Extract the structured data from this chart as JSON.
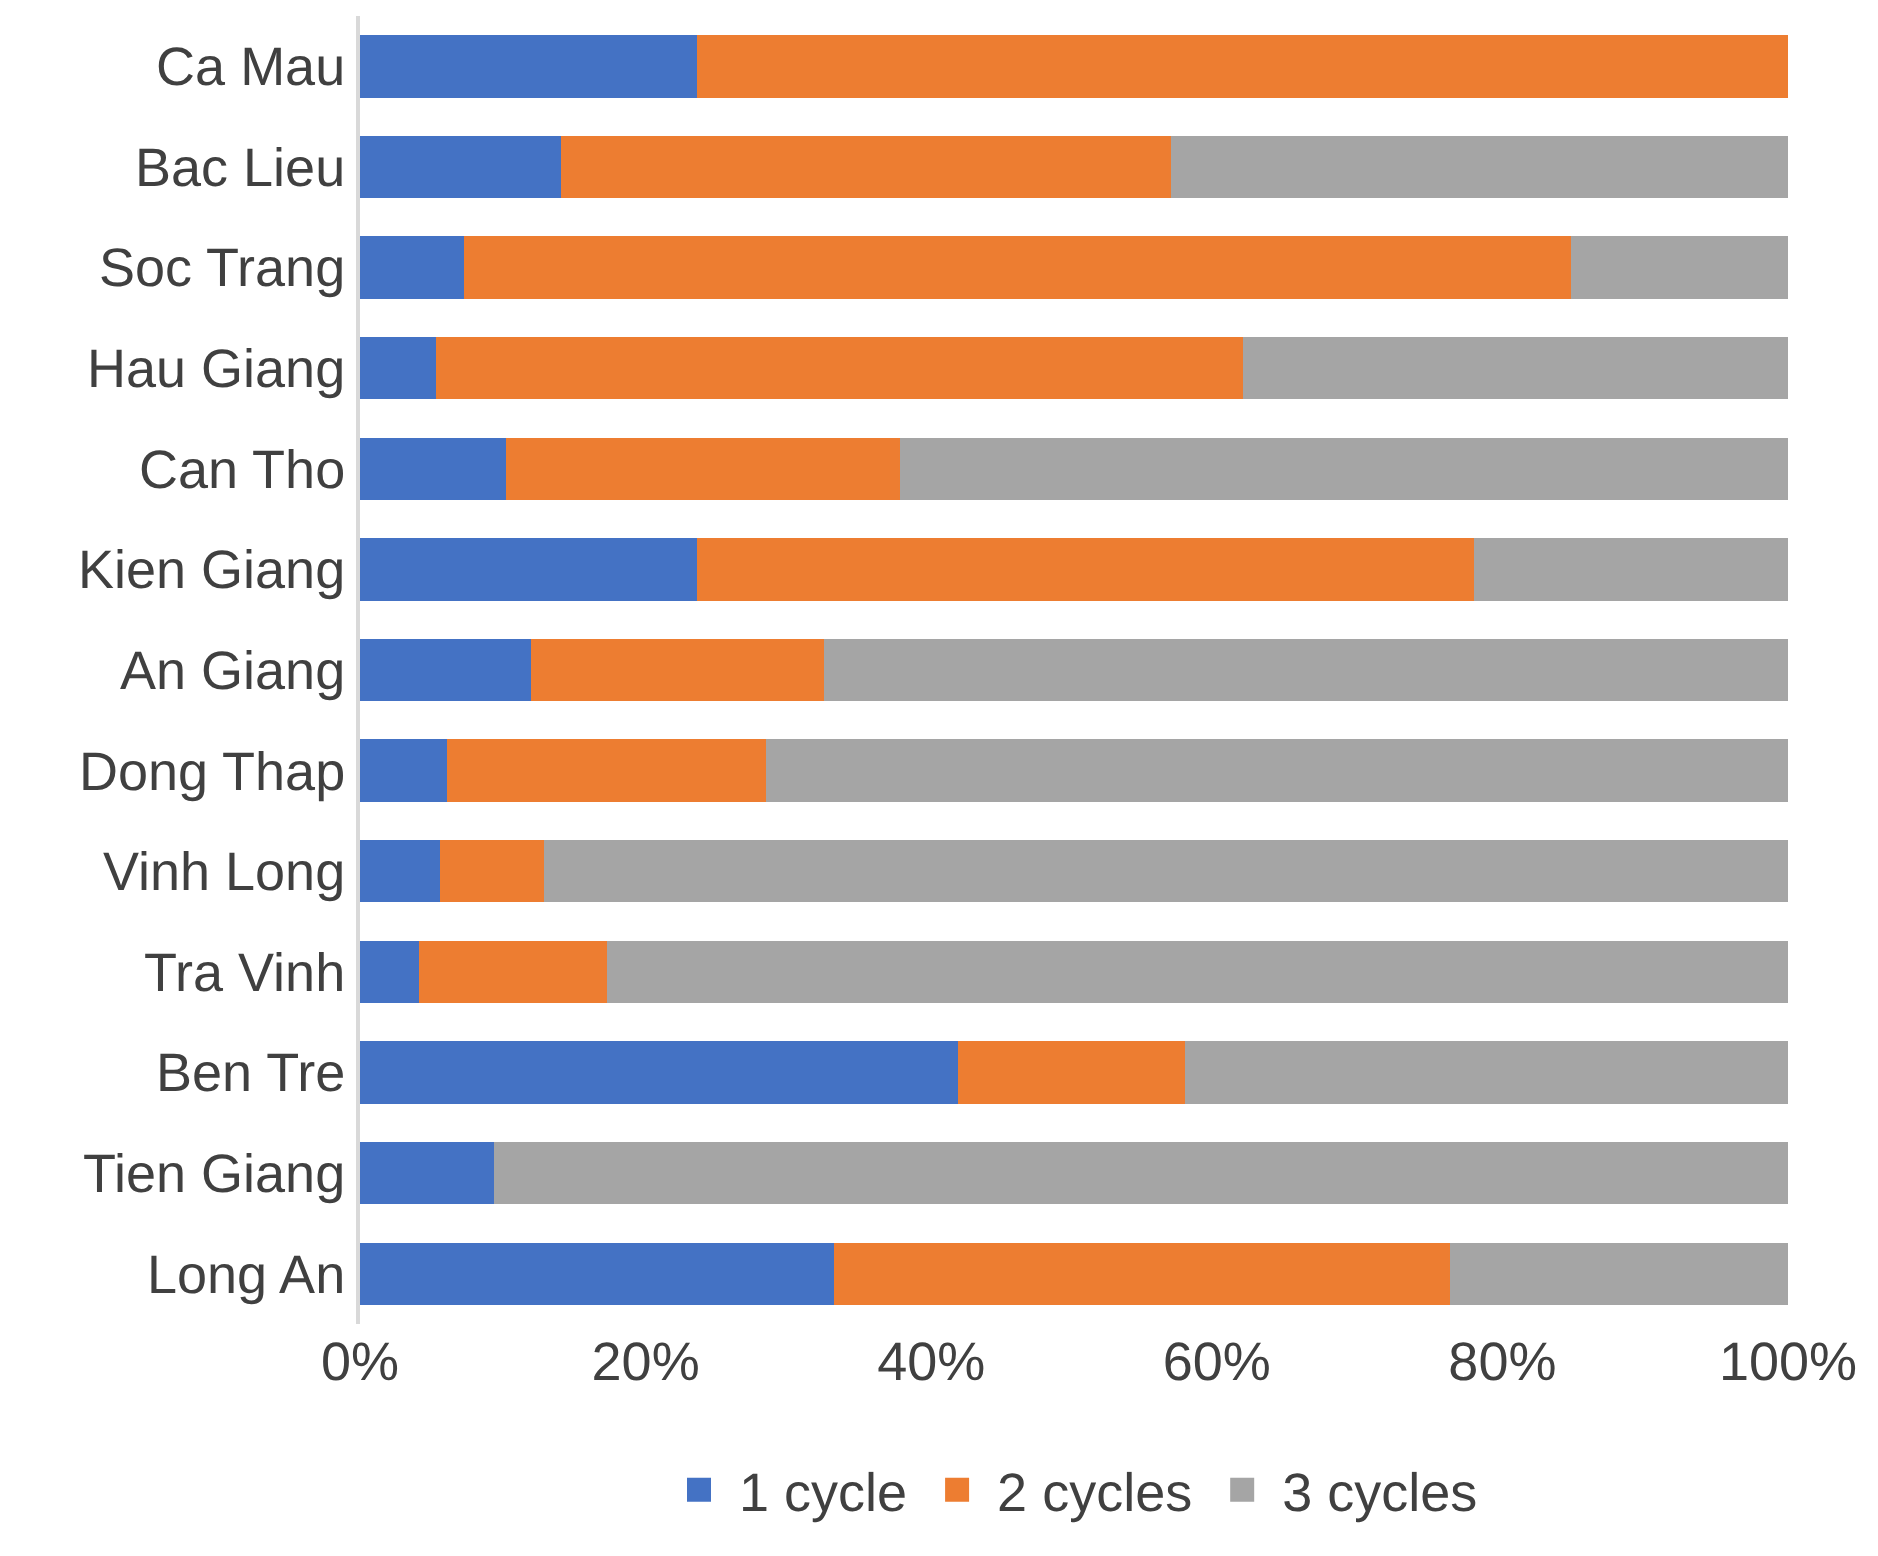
{
  "chart_data": {
    "type": "bar",
    "orientation": "horizontal",
    "stacked": true,
    "legend": "bottom",
    "grid": false,
    "categories": [
      "Ca Mau",
      "Bac Lieu",
      "Soc Trang",
      "Hau Giang",
      "Can Tho",
      "Kien Giang",
      "An Giang",
      "Dong Thap",
      "Vinh Long",
      "Tra Vinh",
      "Ben Tre",
      "Tien Giang",
      "Long An"
    ],
    "series": [
      {
        "name": "1 cycle",
        "color": "#4472c4",
        "values": [
          23.6,
          14.1,
          7.3,
          5.3,
          10.2,
          23.6,
          12.0,
          6.1,
          5.6,
          4.1,
          41.9,
          9.4,
          33.2
        ]
      },
      {
        "name": "2 cycles",
        "color": "#ed7d31",
        "values": [
          76.4,
          42.7,
          77.5,
          56.5,
          27.6,
          54.4,
          20.5,
          22.3,
          7.3,
          13.2,
          15.9,
          0,
          43.1
        ]
      },
      {
        "name": "3 cycles",
        "color": "#a5a5a5",
        "values": [
          0,
          43.2,
          15.2,
          38.2,
          62.2,
          22.0,
          67.5,
          71.6,
          87.1,
          82.7,
          42.2,
          90.6,
          23.7
        ]
      }
    ],
    "xlim": [
      0,
      100
    ],
    "xticks": [
      {
        "value": 0,
        "label": "0%"
      },
      {
        "value": 20,
        "label": "20%"
      },
      {
        "value": 40,
        "label": "40%"
      },
      {
        "value": 60,
        "label": "60%"
      },
      {
        "value": 80,
        "label": "80%"
      },
      {
        "value": 100,
        "label": "100%"
      }
    ]
  }
}
